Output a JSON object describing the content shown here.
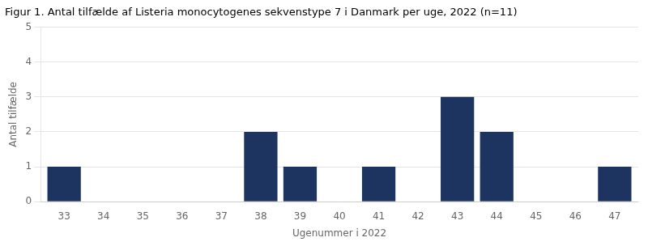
{
  "chart_data": {
    "type": "bar",
    "title": "Figur 1. Antal tilfælde af Listeria monocytogenes sekvenstype 7 i Danmark per uge, 2022 (n=11)",
    "xlabel": "Ugenummer i 2022",
    "ylabel": "Antal tilfælde",
    "x": [
      33,
      34,
      35,
      36,
      37,
      38,
      39,
      40,
      41,
      42,
      43,
      44,
      45,
      46,
      47
    ],
    "values": [
      1,
      0,
      0,
      0,
      0,
      2,
      1,
      0,
      1,
      0,
      3,
      2,
      0,
      0,
      1
    ],
    "color": "#1d3461",
    "xlim": [
      32.4,
      47.6
    ],
    "xticks": [
      33,
      34,
      35,
      36,
      37,
      38,
      39,
      40,
      41,
      42,
      43,
      44,
      45,
      46,
      47
    ],
    "ylim": [
      0,
      5
    ],
    "yticks": [
      0,
      1,
      2,
      3,
      4,
      5
    ],
    "grid": true
  }
}
